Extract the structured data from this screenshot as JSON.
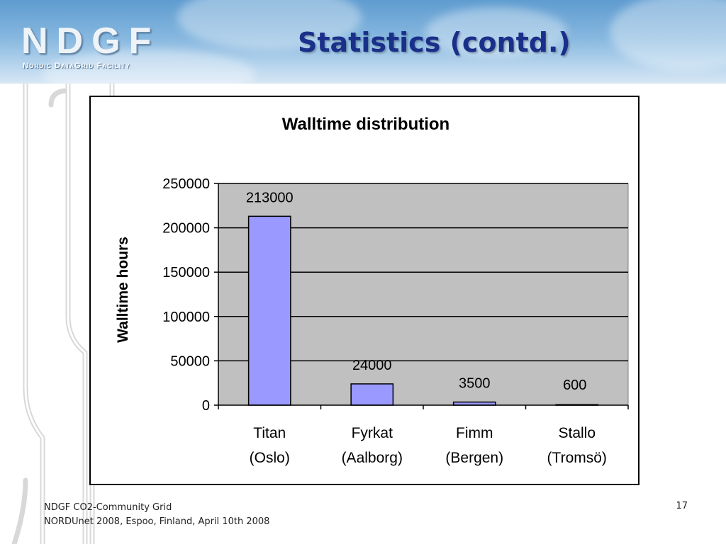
{
  "header": {
    "logo_text": "NDGF",
    "logo_subtitle": "Nordic DataGrid Facility",
    "title": "Statistics (contd.)"
  },
  "chart_data": {
    "type": "bar",
    "title": "Walltime distribution",
    "xlabel": "",
    "ylabel": "Walltime hours",
    "categories": [
      [
        "Titan",
        "(Oslo)"
      ],
      [
        "Fyrkat",
        "(Aalborg)"
      ],
      [
        "Fimm",
        "(Bergen)"
      ],
      [
        "Stallo",
        "(Tromsö)"
      ]
    ],
    "values": [
      213000,
      24000,
      3500,
      600
    ],
    "data_labels": [
      "213000",
      "24000",
      "3500",
      "600"
    ],
    "ylim": [
      0,
      250000
    ],
    "yticks": [
      "0",
      "50000",
      "100000",
      "150000",
      "200000",
      "250000"
    ],
    "grid": true,
    "legend": "none",
    "colors": {
      "bar": "#9999ff",
      "plot_background": "#c0c0c0"
    }
  },
  "footer": {
    "line1": "NDGF CO2-Community Grid",
    "line2": "NORDUnet 2008, Espoo, Finland, April 10th 2008",
    "page_number": "17"
  }
}
